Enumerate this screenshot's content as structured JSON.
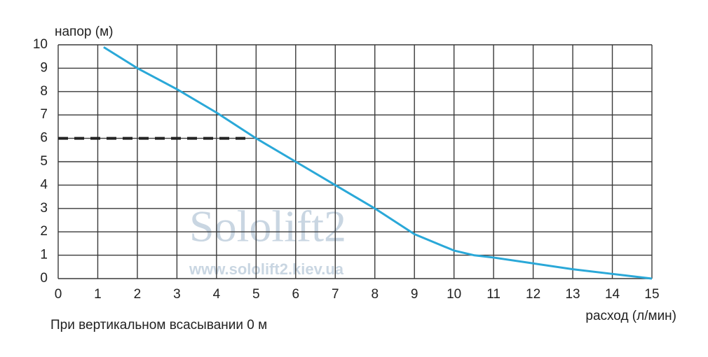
{
  "chart_data": {
    "type": "line",
    "y_label": "напор (м)",
    "x_label": "расход (л/мин)",
    "footnote": "При вертикальном всасывании 0 м",
    "watermark": "Sololift2",
    "watermark_url": "www.sololift2.kiev.ua",
    "x": [
      1.15,
      2,
      3,
      4,
      5,
      6,
      7,
      8,
      9,
      10,
      10.5,
      11,
      12,
      13,
      14,
      15
    ],
    "series": [
      {
        "name": "Sololift2",
        "color": "#2aa8d8",
        "values": [
          9.9,
          9.0,
          8.1,
          7.1,
          6.0,
          5.0,
          4.0,
          3.0,
          1.9,
          1.2,
          1.0,
          0.9,
          0.65,
          0.4,
          0.2,
          0
        ]
      }
    ],
    "reference_line": {
      "y": 6,
      "x": [
        0,
        4.85
      ],
      "color": "#222222"
    },
    "xlim": [
      0,
      15
    ],
    "ylim": [
      0,
      10
    ],
    "xticks": [
      0,
      1,
      2,
      3,
      4,
      5,
      6,
      7,
      8,
      9,
      10,
      11,
      12,
      13,
      14,
      15
    ],
    "yticks": [
      0,
      1,
      2,
      3,
      4,
      5,
      6,
      7,
      8,
      9,
      10
    ],
    "grid": true
  }
}
